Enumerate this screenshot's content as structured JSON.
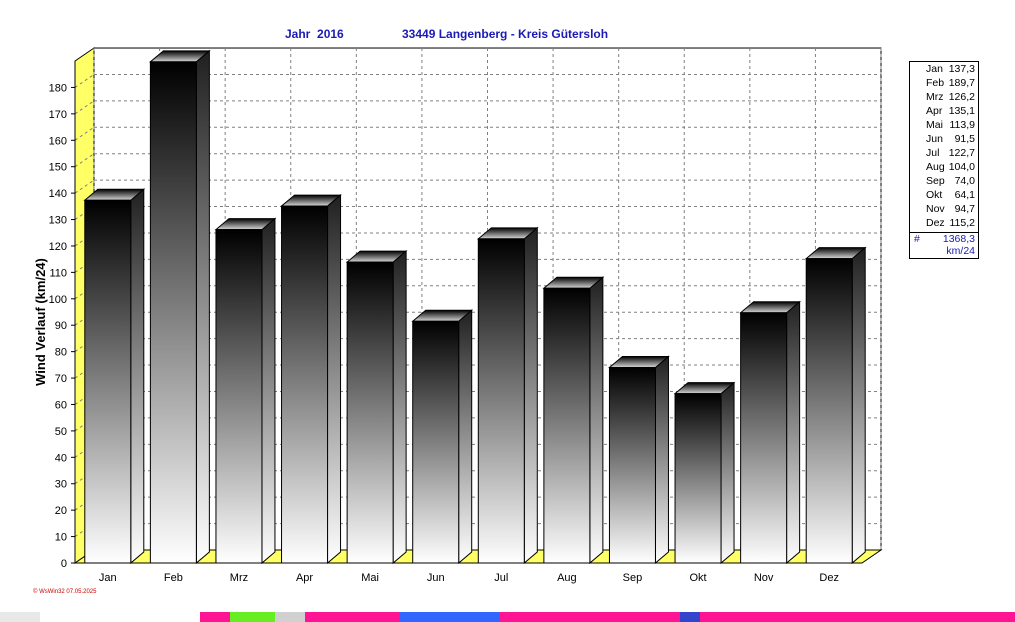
{
  "header": {
    "year_label": "Jahr  2016",
    "station_label": "33449 Langenberg - Kreis Gütersloh"
  },
  "chart_data": {
    "type": "bar",
    "categories": [
      "Jan",
      "Feb",
      "Mrz",
      "Apr",
      "Mai",
      "Jun",
      "Jul",
      "Aug",
      "Sep",
      "Okt",
      "Nov",
      "Dez"
    ],
    "values": [
      137.3,
      189.7,
      126.2,
      135.1,
      113.9,
      91.5,
      122.7,
      104.0,
      74.0,
      64.1,
      94.7,
      115.2
    ],
    "ylabel": "Wind Verlauf  (km/24)",
    "ylim": [
      0,
      190
    ],
    "yticks": [
      0,
      10,
      20,
      30,
      40,
      50,
      60,
      70,
      80,
      90,
      100,
      110,
      120,
      130,
      140,
      150,
      160,
      170,
      180
    ],
    "grid": true,
    "legend": "right"
  },
  "legend": {
    "rows": [
      {
        "month": "Jan",
        "value": "137,3"
      },
      {
        "month": "Feb",
        "value": "189,7"
      },
      {
        "month": "Mrz",
        "value": "126,2"
      },
      {
        "month": "Apr",
        "value": "135,1"
      },
      {
        "month": "Mai",
        "value": "113,9"
      },
      {
        "month": "Jun",
        "value": "91,5"
      },
      {
        "month": "Jul",
        "value": "122,7"
      },
      {
        "month": "Aug",
        "value": "104,0"
      },
      {
        "month": "Sep",
        "value": "74,0"
      },
      {
        "month": "Okt",
        "value": "64,1"
      },
      {
        "month": "Nov",
        "value": "94,7"
      },
      {
        "month": "Dez",
        "value": "115,2"
      }
    ],
    "sum_symbol": "#",
    "sum_value": "1368,3",
    "sum_unit": "km/24"
  },
  "footer": {
    "text": "© WsWin32  07.05.2025"
  },
  "colors": {
    "title": "#1a1ab4",
    "floor": "#ffff66",
    "bar_top": "#000000",
    "bar_bottom": "#ffffff",
    "footer": "#cc0000"
  }
}
